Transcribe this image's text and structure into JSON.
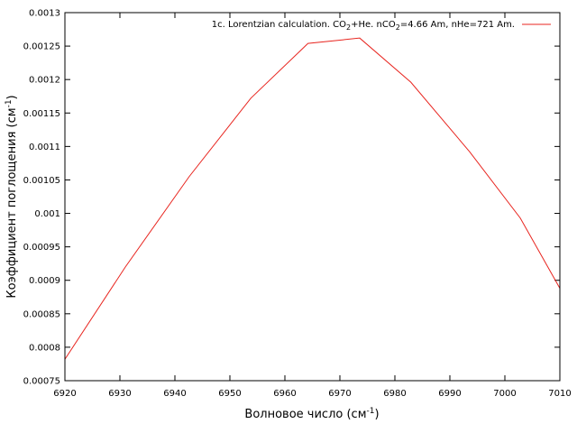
{
  "chart_data": {
    "type": "line",
    "legend_placement": "top-right",
    "grid": false,
    "xlabel": {
      "text": "Волновое число (см",
      "sup": "-1",
      "tail": ")"
    },
    "ylabel": {
      "text": "Коэффициент поглощения (см",
      "sup": "-1",
      "tail": ")"
    },
    "legend": {
      "prefix": "1c. Lorentzian calculation. CO",
      "sub": "2",
      "suffix": "+He. nCO",
      "sub2": "2",
      "tail": "=4.66 Am, nHe=721 Am."
    },
    "xlim": [
      6920,
      7010
    ],
    "ylim": [
      0.00075,
      0.0013
    ],
    "xticks": [
      "6920",
      "6930",
      "6940",
      "6950",
      "6960",
      "6970",
      "6980",
      "6990",
      "7000",
      "7010"
    ],
    "yticks": [
      "0.00075",
      "0.0008",
      "0.00085",
      "0.0009",
      "0.00095",
      "0.001",
      "0.00105",
      "0.0011",
      "0.00115",
      "0.0012",
      "0.00125",
      "0.0013"
    ],
    "series": [
      {
        "color": "#e8251f",
        "x": [
          6920.0,
          6931.0,
          6942.6,
          6953.8,
          6964.2,
          6973.6,
          6982.9,
          6993.6,
          7002.8,
          7010.0
        ],
        "y": [
          0.000782,
          0.00092,
          0.001055,
          0.001172,
          0.001254,
          0.001262,
          0.001196,
          0.001092,
          0.000993,
          0.000888
        ]
      }
    ]
  }
}
